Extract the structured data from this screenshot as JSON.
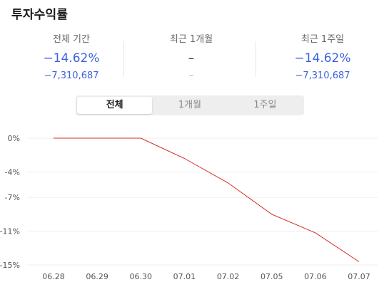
{
  "header": {
    "title": "투자수익률"
  },
  "stats": [
    {
      "label": "전체 기간",
      "percent": "−14.62%",
      "amount": "−7,310,687"
    },
    {
      "label": "최근 1개월",
      "percent": "–",
      "amount": "–"
    },
    {
      "label": "최근 1주일",
      "percent": "−14.62%",
      "amount": "−7,310,687"
    }
  ],
  "tabs": [
    {
      "label": "전체",
      "active": true
    },
    {
      "label": "1개월",
      "active": false
    },
    {
      "label": "1주일",
      "active": false
    }
  ],
  "colors": {
    "accent": "#3c63e0",
    "line": "#d62b2b"
  },
  "chart_data": {
    "type": "line",
    "categories": [
      "06.28",
      "06.29",
      "06.30",
      "07.01",
      "07.02",
      "07.05",
      "07.06",
      "07.07"
    ],
    "series": [
      {
        "values": [
          0,
          0,
          0,
          -2.4,
          -5.3,
          -9.0,
          -11.2,
          -14.62
        ]
      }
    ],
    "yticks": [
      {
        "value": 0,
        "label": "0%"
      },
      {
        "value": -4,
        "label": "-4%"
      },
      {
        "value": -7,
        "label": "-7%"
      },
      {
        "value": -11,
        "label": "-11%"
      },
      {
        "value": -15,
        "label": "-15%"
      }
    ],
    "ylim": [
      -15,
      0
    ],
    "grid": true
  }
}
